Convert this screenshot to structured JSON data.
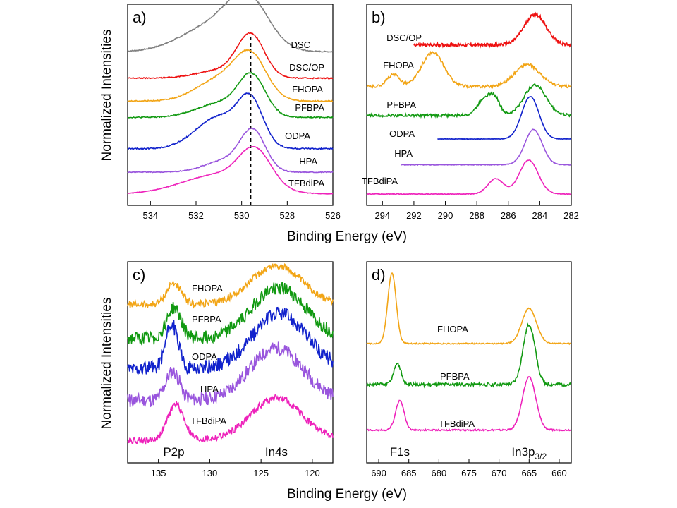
{
  "figure": {
    "ylabel": "Normalized Intensities",
    "xlabel": "Binding Energy (eV)"
  },
  "chart_data": [
    {
      "panel": "a)",
      "type": "line",
      "xlim": [
        535,
        526
      ],
      "xticks": [
        534,
        532,
        530,
        528,
        526
      ],
      "reference_line_x": 529.6,
      "series": [
        {
          "name": "DSC",
          "color": "#808080",
          "noise": 0.012,
          "peaks": [
            [
              529.7,
              1.0,
              0.9
            ],
            [
              531.2,
              0.6,
              1.4
            ]
          ],
          "baseline": 0.06
        },
        {
          "name": "DSC/OP",
          "color": "#ee1111",
          "noise": 0.012,
          "peaks": [
            [
              529.6,
              1.0,
              0.6
            ],
            [
              531.0,
              0.18,
              1.0
            ]
          ],
          "baseline": 0.02
        },
        {
          "name": "FHOPA",
          "color": "#f2a516",
          "noise": 0.012,
          "peaks": [
            [
              529.6,
              1.0,
              0.7
            ],
            [
              531.0,
              0.5,
              1.0
            ]
          ],
          "baseline": 0.03
        },
        {
          "name": "PFBPA",
          "color": "#119911",
          "noise": 0.014,
          "peaks": [
            [
              529.55,
              1.0,
              0.6
            ],
            [
              531.0,
              0.35,
              1.0
            ]
          ],
          "baseline": 0.03
        },
        {
          "name": "ODPA",
          "color": "#1122cc",
          "noise": 0.014,
          "peaks": [
            [
              529.6,
              1.0,
              0.55
            ],
            [
              531.0,
              0.75,
              1.0
            ]
          ],
          "baseline": 0.02
        },
        {
          "name": "HPA",
          "color": "#9955dd",
          "noise": 0.012,
          "peaks": [
            [
              529.5,
              1.0,
              0.55
            ],
            [
              530.7,
              0.3,
              0.9
            ]
          ],
          "baseline": 0.02
        },
        {
          "name": "TFBdiPA",
          "color": "#ee22bb",
          "noise": 0.008,
          "peaks": [
            [
              529.4,
              1.0,
              0.7
            ],
            [
              531.0,
              0.55,
              1.6
            ]
          ],
          "baseline": 0.0
        }
      ]
    },
    {
      "panel": "b)",
      "type": "line",
      "xlim": [
        295,
        282
      ],
      "xticks": [
        294,
        292,
        290,
        288,
        286,
        284,
        282
      ],
      "series": [
        {
          "name": "DSC/OP",
          "color": "#ee1111",
          "noise": 0.05,
          "xstart": 292.0,
          "peaks": [
            [
              284.3,
              0.9,
              0.7
            ]
          ],
          "baseline": 0.05
        },
        {
          "name": "FHOPA",
          "color": "#f2a516",
          "noise": 0.04,
          "peaks": [
            [
              290.8,
              1.0,
              0.7
            ],
            [
              293.3,
              0.35,
              0.4
            ],
            [
              284.8,
              0.65,
              0.8
            ]
          ],
          "baseline": 0.05
        },
        {
          "name": "PFBPA",
          "color": "#119911",
          "noise": 0.04,
          "peaks": [
            [
              287.4,
              0.55,
              0.5
            ],
            [
              286.8,
              0.3,
              0.3
            ],
            [
              284.3,
              0.9,
              0.7
            ]
          ],
          "baseline": 0.05
        },
        {
          "name": "ODPA",
          "color": "#1122cc",
          "noise": 0.005,
          "xstart": 290.5,
          "peaks": [
            [
              284.6,
              1.0,
              0.55
            ]
          ],
          "baseline": 0.0
        },
        {
          "name": "HPA",
          "color": "#9955dd",
          "noise": 0.01,
          "xstart": 292.8,
          "peaks": [
            [
              284.4,
              1.0,
              0.55
            ]
          ],
          "baseline": 0.05
        },
        {
          "name": "TFBdiPA",
          "color": "#ee22bb",
          "noise": 0.01,
          "peaks": [
            [
              286.8,
              0.45,
              0.5
            ],
            [
              284.7,
              1.0,
              0.6
            ]
          ],
          "baseline": 0.0
        }
      ]
    },
    {
      "panel": "c)",
      "type": "line",
      "xlim": [
        138,
        118
      ],
      "xticks": [
        135,
        130,
        125,
        120
      ],
      "peak_labels": [
        {
          "text": "P2p",
          "x": 133.5
        },
        {
          "text": "In4s",
          "x": 123.5
        }
      ],
      "series": [
        {
          "name": "FHOPA",
          "color": "#f2a516",
          "noise": 0.09,
          "peaks": [
            [
              133.5,
              0.55,
              0.7
            ],
            [
              123.5,
              1.0,
              2.5
            ]
          ],
          "baseline": 0.1
        },
        {
          "name": "PFBPA",
          "color": "#119911",
          "noise": 0.13,
          "peaks": [
            [
              133.5,
              0.6,
              0.7
            ],
            [
              123.3,
              1.0,
              2.6
            ]
          ],
          "baseline": 0.1
        },
        {
          "name": "ODPA",
          "color": "#1122cc",
          "noise": 0.13,
          "peaks": [
            [
              133.7,
              0.8,
              0.6
            ],
            [
              123.2,
              1.0,
              2.6
            ]
          ],
          "baseline": 0.1
        },
        {
          "name": "HPA",
          "color": "#9955dd",
          "noise": 0.13,
          "peaks": [
            [
              133.6,
              0.55,
              0.7
            ],
            [
              123.5,
              1.0,
              2.6
            ]
          ],
          "baseline": 0.1
        },
        {
          "name": "TFBdiPA",
          "color": "#ee22bb",
          "noise": 0.08,
          "peaks": [
            [
              133.3,
              0.85,
              0.8
            ],
            [
              123.5,
              1.0,
              2.5
            ]
          ],
          "baseline": 0.05
        }
      ]
    },
    {
      "panel": "d)",
      "type": "line",
      "xlim": [
        692,
        658
      ],
      "xticks": [
        690,
        685,
        680,
        675,
        670,
        665,
        660
      ],
      "peak_labels": [
        {
          "text": "F1s",
          "x": 686.5
        },
        {
          "text": "In3p",
          "sub": "3/2",
          "x": 665
        }
      ],
      "series": [
        {
          "name": "FHOPA",
          "color": "#f2a516",
          "noise": 0.008,
          "peaks": [
            [
              687.8,
              1.0,
              0.7
            ],
            [
              665.0,
              0.5,
              1.2
            ]
          ],
          "baseline": 0.0
        },
        {
          "name": "PFBPA",
          "color": "#119911",
          "noise": 0.025,
          "peaks": [
            [
              686.9,
              0.3,
              0.6
            ],
            [
              665.0,
              0.85,
              1.0
            ]
          ],
          "baseline": 0.05
        },
        {
          "name": "TFBdiPA",
          "color": "#ee22bb",
          "noise": 0.012,
          "peaks": [
            [
              686.5,
              0.5,
              0.7
            ],
            [
              665.0,
              0.9,
              1.1
            ]
          ],
          "baseline": 0.03
        }
      ]
    }
  ]
}
